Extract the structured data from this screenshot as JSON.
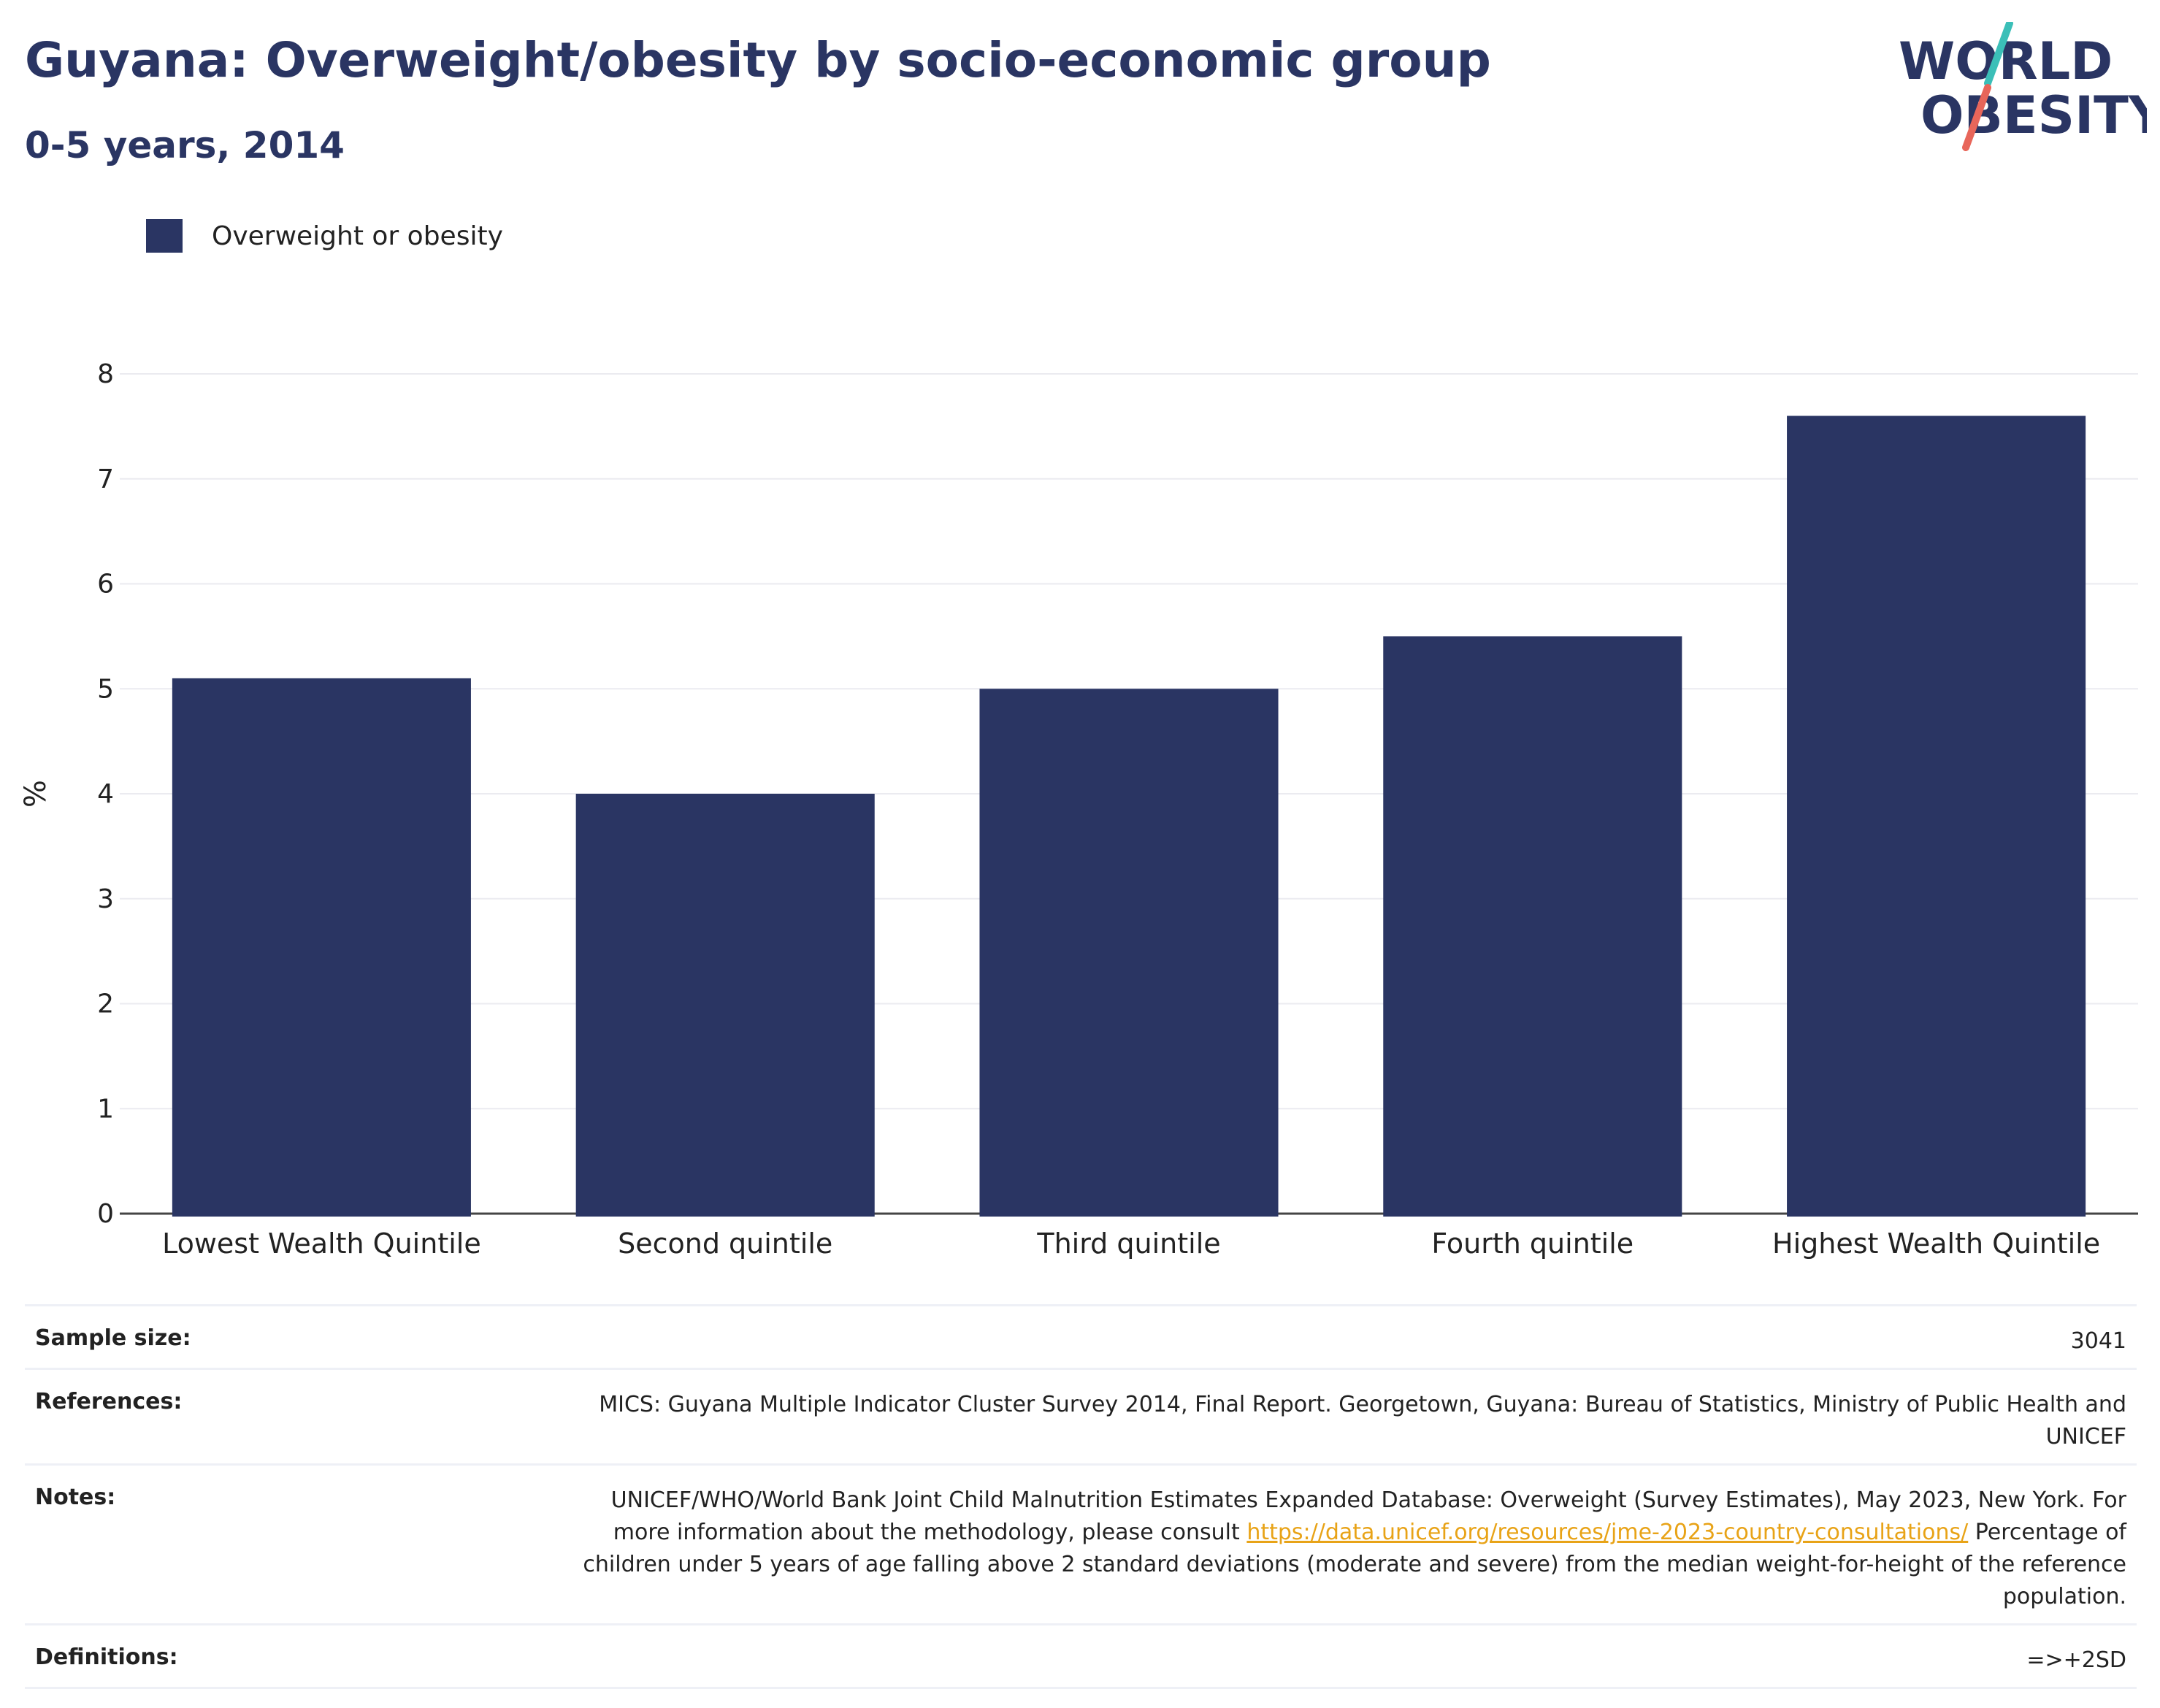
{
  "title": "Guyana: Overweight/obesity by socio-economic group",
  "subtitle": "0-5 years, 2014",
  "logo": {
    "line1": "WORLD",
    "line2": "OBESITY",
    "accent_colors": [
      "#3bbfb8",
      "#e8665a"
    ]
  },
  "legend": {
    "label": "Overweight or obesity",
    "color": "#2a3563"
  },
  "chart_data": {
    "type": "bar",
    "categories": [
      "Lowest Wealth Quintile",
      "Second quintile",
      "Third quintile",
      "Fourth quintile",
      "Highest Wealth Quintile"
    ],
    "series": [
      {
        "name": "Overweight or obesity",
        "values": [
          5.1,
          4.0,
          5.0,
          5.5,
          7.6
        ],
        "color": "#2a3563"
      }
    ],
    "ylabel": "%",
    "ylim": [
      0,
      8
    ],
    "yticks": [
      "0",
      "1",
      "2",
      "3",
      "4",
      "5",
      "6",
      "7",
      "8"
    ],
    "grid": true,
    "legend_position": "top-left"
  },
  "info": {
    "sample_size_label": "Sample size:",
    "sample_size_value": "3041",
    "references_label": "References:",
    "references_value": "MICS: Guyana Multiple Indicator Cluster Survey 2014, Final Report. Georgetown, Guyana: Bureau of Statistics, Ministry of Public Health and UNICEF",
    "notes_label": "Notes:",
    "notes_text_before": "UNICEF/WHO/World Bank Joint Child Malnutrition Estimates Expanded Database: Overweight (Survey Estimates), May 2023, New York. For more information about the methodology, please consult ",
    "notes_link": "https://data.unicef.org/resources/jme-2023-country-consultations/",
    "notes_text_after": " Percentage of children under 5 years of age falling above 2 standard deviations (moderate and severe) from the median weight-for-height of the reference population.",
    "definitions_label": "Definitions:",
    "definitions_value": "=>+2SD"
  }
}
